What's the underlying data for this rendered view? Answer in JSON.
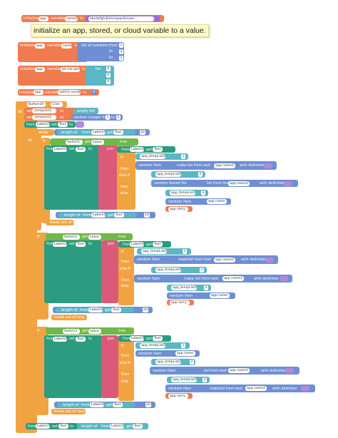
{
  "globals": {
    "init1": {
      "initialize": "initialize",
      "scope": "app",
      "variable": "variable",
      "name": "name1",
      "to": "to",
      "value": "abcdefghijklmnopqrstuvwx..."
    },
    "tooltip": "initialize an app, stored, or cloud variable to a value.",
    "init2": {
      "initialize": "initialize",
      "scope": "app",
      "variable": "variable",
      "name": "name",
      "to": "to",
      "list_of_numbers": "list of numbers from",
      "to_a": "to",
      "to_b": "to",
      "v1": "1",
      "v2": "3",
      "v3": "1"
    },
    "init3": {
      "initialize": "initialize",
      "scope": "app",
      "variable": "variable",
      "name": "let me work",
      "to": "to",
      "list": "list",
      "v1": "0",
      "v2": "0",
      "v3": "0"
    },
    "init4": {
      "initialize": "initialize",
      "scope": "app",
      "variable": "variable",
      "name": "switch number",
      "to": "to",
      "value": "0"
    }
  },
  "event": {
    "when": "when",
    "component": "Button19",
    "dot": ".",
    "event": "Click",
    "do": "do",
    "set1": {
      "set": "set",
      "scope": "app",
      "var": "_tempList1",
      "to": "to",
      "value": "empty list"
    },
    "set2": {
      "set": "set",
      "scope": "app",
      "var": "_tempList2",
      "to": "to",
      "value": "random integer from",
      "a": "1",
      "b": "5",
      "to_label": "to"
    },
    "label_from": "from",
    "label_comp": "Label10",
    "label_set": "set",
    "label_prop": "Text",
    "label_to": "to",
    "repeat": "repeat",
    "while": "while",
    "length_of": "length of",
    "from": "from",
    "get": "get",
    "text": "Text",
    "num20": "20",
    "if": "if",
    "then": "then",
    "else": "else",
    "else_if": "else if",
    "switch1": "Switch1",
    "switch2": "Switch2",
    "switch3": "Switch3",
    "value": "value",
    "true": "true",
    "label10": "Label10",
    "join": "join",
    "make": "make",
    "list_from_text": "list from text",
    "with_delimiter": "with delimiter",
    "random_item": "random item",
    "of_list": "of list",
    "app_templist2": "app_tempList2",
    "app_name1": "app name1",
    "app_name": "app name",
    "app_name2": "app name2",
    "app_sorry": "app sorry",
    "break": "break out of loop",
    "label15": "Label15",
    "n1": "1",
    "n2": "2",
    "n3": "3"
  }
}
